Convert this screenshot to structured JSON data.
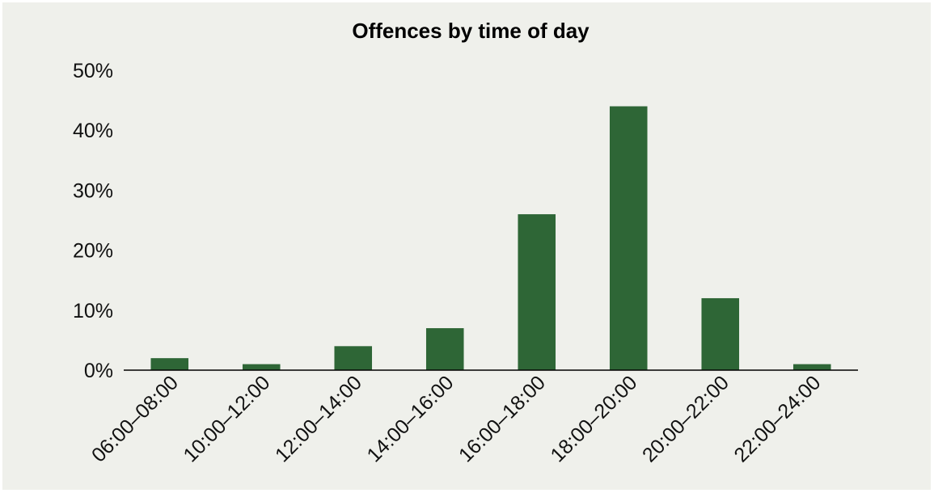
{
  "chart_data": {
    "type": "bar",
    "title": "Offences by time of day",
    "xlabel": "",
    "ylabel": "",
    "categories": [
      "06:00–08:00",
      "10:00–12:00",
      "12:00–14:00",
      "14:00–16:00",
      "16:00–18:00",
      "18:00–20:00",
      "20:00–22:00",
      "22:00–24:00"
    ],
    "values": [
      2,
      1,
      4,
      7,
      26,
      44,
      12,
      1
    ],
    "value_unit": "%",
    "ylim": [
      0,
      50
    ],
    "yticks": [
      "0%",
      "10%",
      "20%",
      "30%",
      "40%",
      "50%"
    ],
    "grid": false,
    "legend": "none",
    "colors": {
      "bar": "#2e6636",
      "background": "#eff0eb",
      "axis": "#000000"
    }
  }
}
